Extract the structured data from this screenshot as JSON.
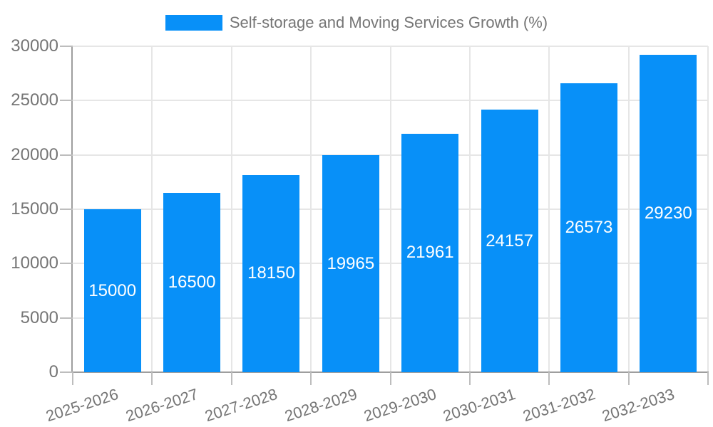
{
  "chart_data": {
    "type": "bar",
    "title": "Self-storage and Moving Services Growth (%)",
    "categories": [
      "2025-2026",
      "2026-2027",
      "2027-2028",
      "2028-2029",
      "2029-2030",
      "2030-2031",
      "2031-2032",
      "2032-2033"
    ],
    "values": [
      15000,
      16500,
      18150,
      19965,
      21961,
      24157,
      26573,
      29230
    ],
    "value_labels": [
      "15000",
      "16500",
      "18150",
      "19965",
      "21961",
      "24157",
      "26573",
      "29230"
    ],
    "ytick_labels": [
      "0",
      "5000",
      "10000",
      "15000",
      "20000",
      "25000",
      "30000"
    ],
    "yticks": [
      0,
      5000,
      10000,
      15000,
      20000,
      25000,
      30000
    ],
    "ylim": [
      0,
      30000
    ],
    "xlabel": "",
    "ylabel": "",
    "legend_position": "top",
    "grid": true,
    "colors": {
      "bar": "#0890f8",
      "value_label": "#ffffff",
      "axis": "#9e9e9e",
      "grid": "#e6e6e6",
      "tick": "#bdbdbd",
      "text": "#757575"
    }
  }
}
